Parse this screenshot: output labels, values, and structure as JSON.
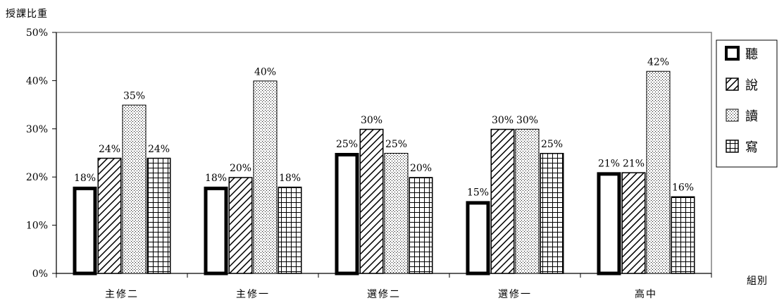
{
  "chart_data": {
    "type": "bar",
    "ylabel": "授課比重",
    "xlabel": "組別",
    "categories": [
      "主修二",
      "主修一",
      "選修二",
      "選修一",
      "高中"
    ],
    "ylim": [
      0,
      50
    ],
    "yticks": [
      "0%",
      "10%",
      "20%",
      "30%",
      "40%",
      "50%"
    ],
    "series": [
      {
        "name": "聽",
        "values": [
          18,
          18,
          25,
          15,
          21
        ],
        "labels": [
          "18%",
          "18%",
          "25%",
          "15%",
          "21%"
        ]
      },
      {
        "name": "說",
        "values": [
          24,
          20,
          30,
          30,
          21
        ],
        "labels": [
          "24%",
          "20%",
          "30%",
          "30%",
          "21%"
        ]
      },
      {
        "name": "讀",
        "values": [
          35,
          40,
          25,
          30,
          42
        ],
        "labels": [
          "35%",
          "40%",
          "25%",
          "30%",
          "42%"
        ]
      },
      {
        "name": "寫",
        "values": [
          24,
          18,
          20,
          25,
          16
        ],
        "labels": [
          "24%",
          "18%",
          "20%",
          "25%",
          "16%"
        ]
      }
    ],
    "legend_position": "right",
    "grid": false
  }
}
